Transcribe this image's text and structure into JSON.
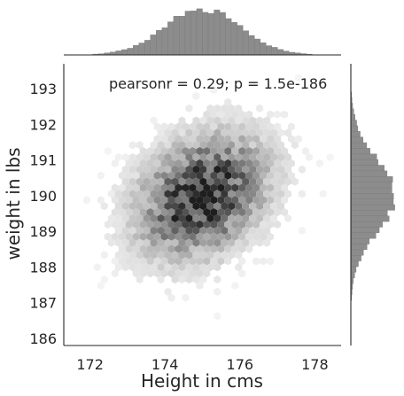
{
  "chart_data": {
    "type": "hexbin-jointplot",
    "xlabel": "Height in cms",
    "ylabel": "weight in lbs",
    "xlim": [
      171.3,
      178.7
    ],
    "ylim": [
      185.8,
      193.7
    ],
    "x_ticks": [
      "172",
      "174",
      "176",
      "178"
    ],
    "y_ticks": [
      "186",
      "187",
      "188",
      "189",
      "190",
      "191",
      "192",
      "193"
    ],
    "annotation": "pearsonr = 0.29; p = 1.5e-186",
    "stats": {
      "pearsonr": 0.29,
      "p": "1.5e-186",
      "x_mean": 175.0,
      "x_sd": 1.0,
      "y_mean": 190.0,
      "y_sd": 1.0
    },
    "grid": false,
    "color": "#6b6b6b",
    "marginal_color": "#8c8c8c"
  }
}
